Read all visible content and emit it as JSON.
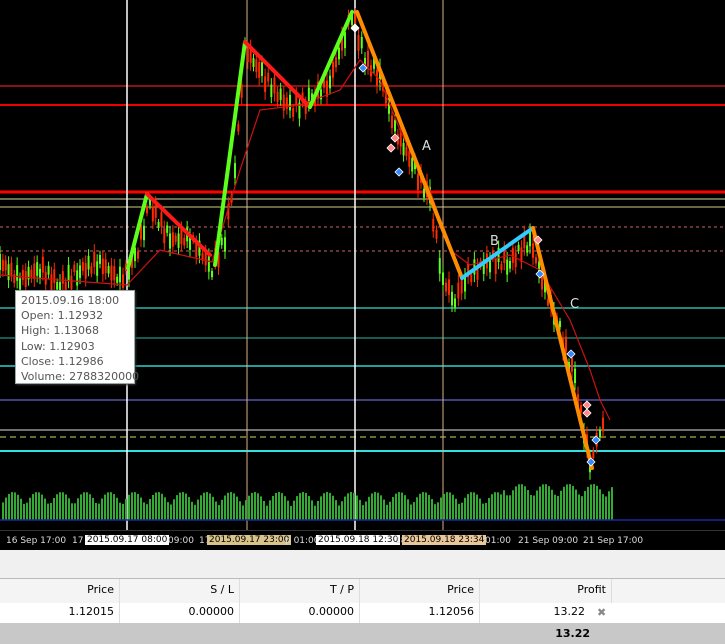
{
  "colors": {
    "background": "#000000",
    "candle": "#ff2a00",
    "up_wave": "#5cff1a",
    "down_wave_red": "#ff1a1a",
    "down_wave_orange": "#ff8c00",
    "cyan_wave": "#33ccff",
    "ma_line": "#cc1111",
    "volume": "#33aa33"
  },
  "tooltip": {
    "date": "2015.09.16 18:00",
    "open": "Open: 1.12932",
    "high": "High: 1.13068",
    "low": "Low: 1.12903",
    "close": "Close: 1.12986",
    "volume": "Volume: 2788320000"
  },
  "wave_labels": {
    "a": "A",
    "b": "B",
    "c": "C"
  },
  "time_axis": {
    "labels": [
      "16 Sep 17:00",
      "17",
      "09:00",
      "17",
      "p 01:00",
      "18",
      "01:00",
      "21 Sep 09:00",
      "21 Sep 17:00"
    ],
    "flags": [
      "2015.09.17 08:00",
      "2015.09.17 23:00",
      "2015.09.18 12:30",
      "2015.09.18 23:34"
    ]
  },
  "table": {
    "headers": {
      "price": "Price",
      "sl": "S / L",
      "tp": "T / P",
      "price2": "Price",
      "profit": "Profit"
    },
    "row": {
      "price": "1.12015",
      "sl": "0.00000",
      "tp": "0.00000",
      "price2": "1.12056",
      "profit": "13.22"
    },
    "total": "13.22"
  },
  "icons": {
    "close_row": "close-icon"
  }
}
